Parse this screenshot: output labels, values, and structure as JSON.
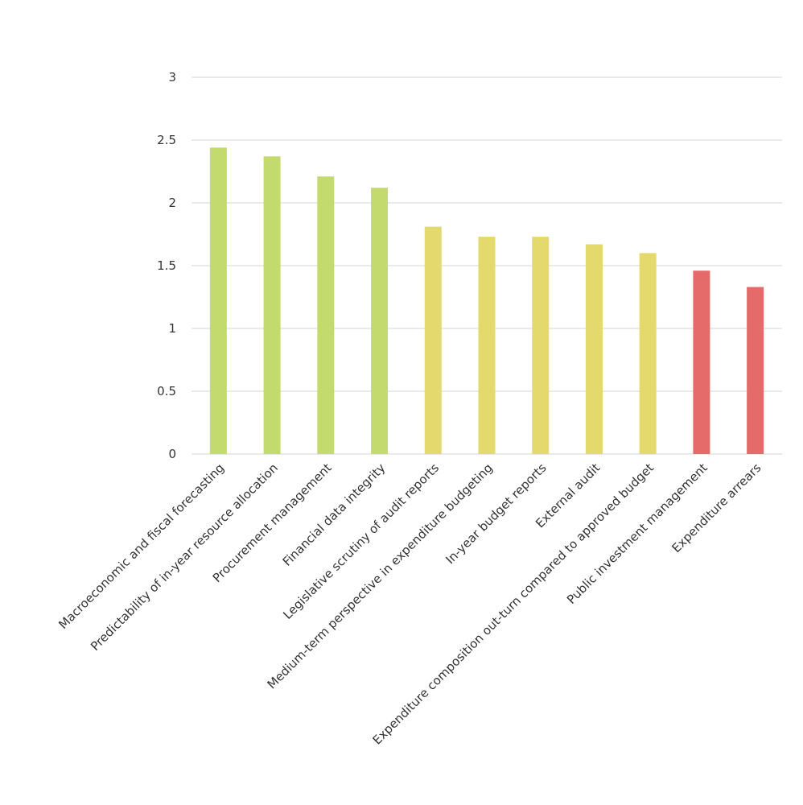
{
  "chart_data": {
    "type": "bar",
    "title": "",
    "xlabel": "",
    "ylabel": "",
    "ylim": [
      0,
      3
    ],
    "yticks": [
      0,
      0.5,
      1,
      1.5,
      2,
      2.5,
      3
    ],
    "ytick_labels": [
      "0",
      "0.5",
      "1",
      "1.5",
      "2",
      "2.5",
      "3"
    ],
    "grid": true,
    "legend": null,
    "categories": [
      "Macroeconomic and fiscal forecasting",
      "Predictability of in-year resource allocation",
      "Procurement management",
      "Financial data integrity",
      "Legislative scrutiny of audit reports",
      "Medium-term perspective in expenditure budgeting",
      "In-year budget reports",
      "External audit",
      "Expenditure composition out-turn compared to approved budget",
      "Public investment management",
      "Expenditure arrears"
    ],
    "values": [
      2.44,
      2.37,
      2.21,
      2.12,
      1.81,
      1.73,
      1.73,
      1.67,
      1.6,
      1.46,
      1.33
    ],
    "bar_colors": [
      "#c3da6e",
      "#c3da6e",
      "#c3da6e",
      "#c3da6e",
      "#e3d96d",
      "#e3d96d",
      "#e3d96d",
      "#e3d96d",
      "#e3d96d",
      "#e56b6b",
      "#e56b6b"
    ]
  }
}
